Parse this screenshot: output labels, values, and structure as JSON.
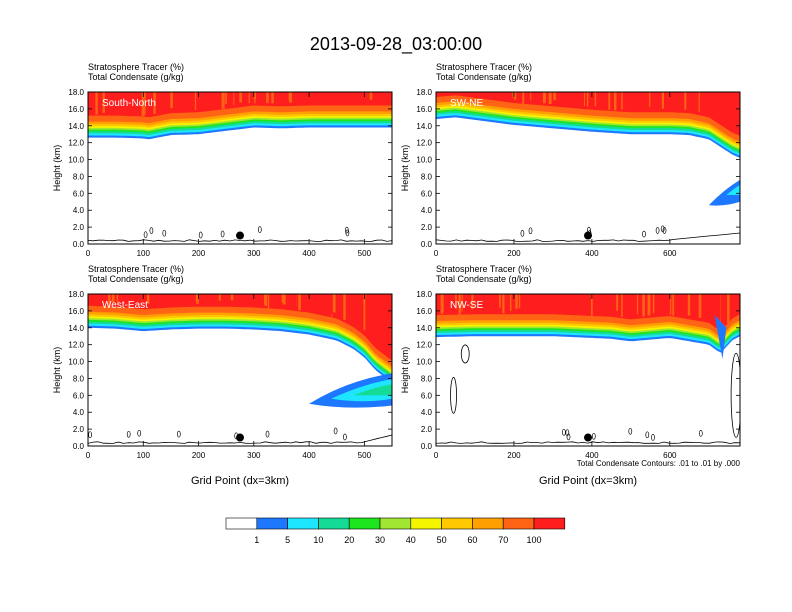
{
  "title": "2013-09-28_03:00:00",
  "legend": {
    "colors": [
      "#ffffff",
      "#1e78ff",
      "#1ee6ff",
      "#14dc96",
      "#1ee61e",
      "#a0e632",
      "#f5f500",
      "#ffc800",
      "#ffa000",
      "#ff6414",
      "#ff1e1e"
    ],
    "labels": [
      "1",
      "5",
      "10",
      "20",
      "30",
      "40",
      "50",
      "60",
      "70",
      "100"
    ]
  },
  "chart_data": [
    {
      "type": "contour",
      "panel_label": "South-North",
      "title_line1": "Stratosphere Tracer   (%)",
      "title_line2": "Total Condensate   (g/kg)",
      "ylabel": "Height (km)",
      "xlabel": "",
      "xlim": [
        0,
        550
      ],
      "ylim": [
        0,
        18
      ],
      "xticks": [
        "0",
        "100",
        "200",
        "300",
        "400",
        "500"
      ],
      "yticks": [
        "0.0",
        "2.0",
        "4.0",
        "6.0",
        "8.0",
        "10.0",
        "12.0",
        "14.0",
        "16.0",
        "18.0"
      ],
      "tracer_profile": {
        "x": [
          0,
          50,
          100,
          110,
          150,
          200,
          250,
          300,
          350,
          400,
          450,
          500,
          550
        ],
        "base_height_km": [
          12.6,
          12.6,
          12.5,
          12.4,
          12.9,
          13.0,
          13.4,
          13.8,
          13.7,
          13.8,
          13.8,
          13.8,
          13.8
        ]
      },
      "marker": {
        "x": 275,
        "y": 1.0
      }
    },
    {
      "type": "contour",
      "panel_label": "SW-NE",
      "title_line1": "Stratosphere Tracer   (%)",
      "title_line2": "Total Condensate   (g/kg)",
      "ylabel": "Height (km)",
      "xlabel": "",
      "xlim": [
        0,
        780
      ],
      "ylim": [
        0,
        18
      ],
      "xticks": [
        "0",
        "200",
        "400",
        "600"
      ],
      "yticks": [
        "0.0",
        "2.0",
        "4.0",
        "6.0",
        "8.0",
        "10.0",
        "12.0",
        "14.0",
        "16.0",
        "18.0"
      ],
      "tracer_profile": {
        "x": [
          0,
          50,
          100,
          200,
          300,
          400,
          500,
          600,
          650,
          700,
          730,
          760,
          780
        ],
        "base_height_km": [
          14.8,
          15.0,
          14.7,
          14.1,
          13.7,
          13.3,
          13.0,
          13.0,
          12.9,
          12.4,
          11.5,
          10.6,
          10.2
        ]
      },
      "marker": {
        "x": 390,
        "y": 1.0
      }
    },
    {
      "type": "contour",
      "panel_label": "West-East",
      "title_line1": "Stratosphere Tracer   (%)",
      "title_line2": "Total Condensate   (g/kg)",
      "ylabel": "Height (km)",
      "xlabel": "Grid Point (dx=3km)",
      "xlim": [
        0,
        550
      ],
      "ylim": [
        0,
        18
      ],
      "xticks": [
        "0",
        "100",
        "200",
        "300",
        "400",
        "500"
      ],
      "yticks": [
        "0.0",
        "2.0",
        "4.0",
        "6.0",
        "8.0",
        "10.0",
        "12.0",
        "14.0",
        "16.0",
        "18.0"
      ],
      "tracer_profile": {
        "x": [
          0,
          50,
          100,
          150,
          200,
          250,
          300,
          350,
          400,
          450,
          480,
          500,
          520,
          550
        ],
        "base_height_km": [
          14.0,
          13.9,
          13.6,
          13.8,
          13.9,
          13.9,
          13.8,
          13.6,
          13.2,
          12.5,
          11.5,
          10.5,
          9.0,
          7.5
        ]
      },
      "marker": {
        "x": 275,
        "y": 1.0
      }
    },
    {
      "type": "contour",
      "panel_label": "NW-SE",
      "title_line1": "Stratosphere Tracer   (%)",
      "title_line2": "Total Condensate   (g/kg)",
      "ylabel": "Height (km)",
      "xlabel": "Grid Point (dx=3km)",
      "xlim": [
        0,
        780
      ],
      "ylim": [
        0,
        18
      ],
      "xticks": [
        "0",
        "200",
        "400",
        "600"
      ],
      "yticks": [
        "0.0",
        "2.0",
        "4.0",
        "6.0",
        "8.0",
        "10.0",
        "12.0",
        "14.0",
        "16.0",
        "18.0"
      ],
      "tracer_profile": {
        "x": [
          0,
          100,
          200,
          300,
          400,
          450,
          500,
          550,
          600,
          650,
          700,
          730,
          760,
          780
        ],
        "base_height_km": [
          12.9,
          13.0,
          13.0,
          13.0,
          12.8,
          12.7,
          12.4,
          12.6,
          12.8,
          12.4,
          12.0,
          11.0,
          12.5,
          13.0
        ]
      },
      "marker": {
        "x": 390,
        "y": 1.0
      },
      "footnote": "Total Condensate Contours: .01 to .01 by .000"
    }
  ]
}
